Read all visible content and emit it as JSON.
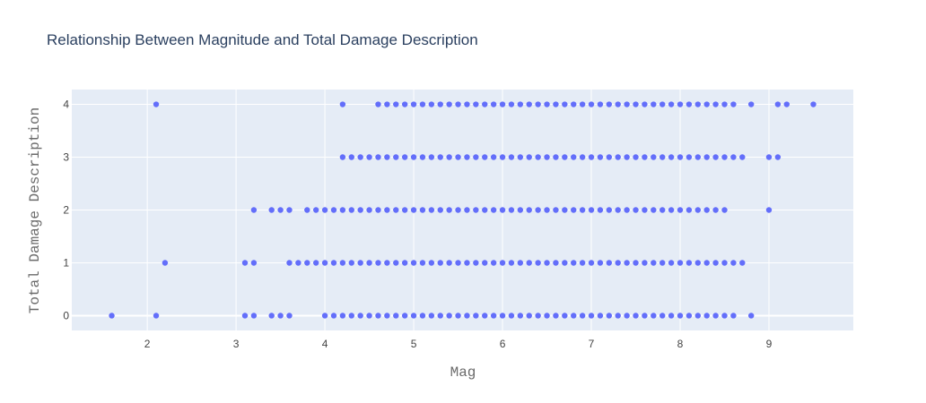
{
  "chart_data": {
    "type": "scatter",
    "title": "Relationship Between Magnitude and Total Damage Description",
    "xlabel": "Mag",
    "ylabel": "Total Damage Description",
    "xlim": [
      1.15,
      9.95
    ],
    "ylim": [
      -0.28,
      4.28
    ],
    "xticks": [
      2,
      3,
      4,
      5,
      6,
      7,
      8,
      9
    ],
    "yticks": [
      0,
      1,
      2,
      3,
      4
    ],
    "grid": true,
    "legend": "none",
    "colors": {
      "marker": "#636efa",
      "plot_background": "#e5ecf6",
      "grid": "#ffffff",
      "title": "#2a3f5f"
    },
    "series": [
      {
        "points": [
          {
            "y": 0,
            "x": [
              1.6,
              2.1,
              3.1,
              3.2,
              3.4,
              3.5,
              3.6,
              4.0,
              4.1,
              4.2,
              4.3,
              4.4,
              4.5,
              4.6,
              4.7,
              4.8,
              4.9,
              5.0,
              5.1,
              5.2,
              5.3,
              5.4,
              5.5,
              5.6,
              5.7,
              5.8,
              5.9,
              6.0,
              6.1,
              6.2,
              6.3,
              6.4,
              6.5,
              6.6,
              6.7,
              6.8,
              6.9,
              7.0,
              7.1,
              7.2,
              7.3,
              7.4,
              7.5,
              7.6,
              7.7,
              7.8,
              7.9,
              8.0,
              8.1,
              8.2,
              8.3,
              8.4,
              8.5,
              8.6,
              8.8
            ]
          },
          {
            "y": 1,
            "x": [
              2.2,
              3.1,
              3.2,
              3.6,
              3.7,
              3.8,
              3.9,
              4.0,
              4.1,
              4.2,
              4.3,
              4.4,
              4.5,
              4.6,
              4.7,
              4.8,
              4.9,
              5.0,
              5.1,
              5.2,
              5.3,
              5.4,
              5.5,
              5.6,
              5.7,
              5.8,
              5.9,
              6.0,
              6.1,
              6.2,
              6.3,
              6.4,
              6.5,
              6.6,
              6.7,
              6.8,
              6.9,
              7.0,
              7.1,
              7.2,
              7.3,
              7.4,
              7.5,
              7.6,
              7.7,
              7.8,
              7.9,
              8.0,
              8.1,
              8.2,
              8.3,
              8.4,
              8.5,
              8.6,
              8.7
            ]
          },
          {
            "y": 2,
            "x": [
              3.2,
              3.4,
              3.5,
              3.6,
              3.8,
              3.9,
              4.0,
              4.1,
              4.2,
              4.3,
              4.4,
              4.5,
              4.6,
              4.7,
              4.8,
              4.9,
              5.0,
              5.1,
              5.2,
              5.3,
              5.4,
              5.5,
              5.6,
              5.7,
              5.8,
              5.9,
              6.0,
              6.1,
              6.2,
              6.3,
              6.4,
              6.5,
              6.6,
              6.7,
              6.8,
              6.9,
              7.0,
              7.1,
              7.2,
              7.3,
              7.4,
              7.5,
              7.6,
              7.7,
              7.8,
              7.9,
              8.0,
              8.1,
              8.2,
              8.3,
              8.4,
              8.5,
              9.0
            ]
          },
          {
            "y": 3,
            "x": [
              4.2,
              4.3,
              4.4,
              4.5,
              4.6,
              4.7,
              4.8,
              4.9,
              5.0,
              5.1,
              5.2,
              5.3,
              5.4,
              5.5,
              5.6,
              5.7,
              5.8,
              5.9,
              6.0,
              6.1,
              6.2,
              6.3,
              6.4,
              6.5,
              6.6,
              6.7,
              6.8,
              6.9,
              7.0,
              7.1,
              7.2,
              7.3,
              7.4,
              7.5,
              7.6,
              7.7,
              7.8,
              7.9,
              8.0,
              8.1,
              8.2,
              8.3,
              8.4,
              8.5,
              8.6,
              8.7,
              9.0,
              9.1
            ]
          },
          {
            "y": 4,
            "x": [
              2.1,
              4.2,
              4.6,
              4.7,
              4.8,
              4.9,
              5.0,
              5.1,
              5.2,
              5.3,
              5.4,
              5.5,
              5.6,
              5.7,
              5.8,
              5.9,
              6.0,
              6.1,
              6.2,
              6.3,
              6.4,
              6.5,
              6.6,
              6.7,
              6.8,
              6.9,
              7.0,
              7.1,
              7.2,
              7.3,
              7.4,
              7.5,
              7.6,
              7.7,
              7.8,
              7.9,
              8.0,
              8.1,
              8.2,
              8.3,
              8.4,
              8.5,
              8.6,
              8.8,
              9.1,
              9.2,
              9.5
            ]
          }
        ]
      }
    ]
  }
}
